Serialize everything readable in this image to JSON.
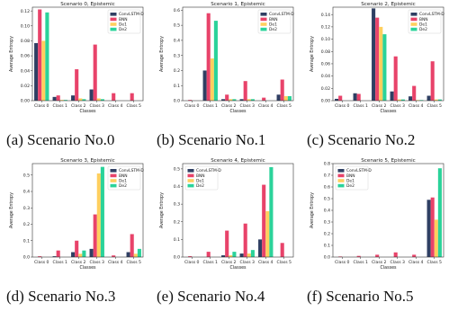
{
  "colors": {
    "ConvLSTM-D": "#2f3f63",
    "BNN": "#e8436a",
    "De1": "#ffcf5e",
    "De2": "#2bd39a"
  },
  "captions": [
    "(a) Scenario No.0",
    "(b) Scenario No.1",
    "(c) Scenario No.2",
    "(d) Scenario No.3",
    "(e) Scenario No.4",
    "(f) Scenario No.5"
  ],
  "chart_data": [
    {
      "type": "bar",
      "title": "Scenario 0, Epistemic",
      "xlabel": "Classes",
      "ylabel": "Average Entropy",
      "categories": [
        "Class 0",
        "Class 1",
        "Class 2",
        "Class 3",
        "Class 4",
        "Class 5"
      ],
      "ylim": [
        0,
        0.125
      ],
      "yticks": [
        0.0,
        0.02,
        0.04,
        0.06,
        0.08,
        0.1,
        0.12
      ],
      "yticklabels": [
        "0.00",
        "0.02",
        "0.04",
        "0.06",
        "0.08",
        "0.10",
        "0.12"
      ],
      "legend": "top-right",
      "series": [
        {
          "name": "ConvLSTM-D",
          "values": [
            0.077,
            0.005,
            0.007,
            0.015,
            0.0,
            0.0
          ]
        },
        {
          "name": "BNN",
          "values": [
            0.122,
            0.007,
            0.042,
            0.075,
            0.01,
            0.01
          ]
        },
        {
          "name": "De1",
          "values": [
            0.08,
            0.001,
            0.003,
            0.003,
            0.0,
            0.0
          ]
        },
        {
          "name": "De2",
          "values": [
            0.118,
            0.001,
            0.002,
            0.002,
            0.0,
            0.0
          ]
        }
      ]
    },
    {
      "type": "bar",
      "title": "Scenario 1, Epistemic",
      "xlabel": "Classes",
      "ylabel": "Average Entropy",
      "categories": [
        "Class 0",
        "Class 1",
        "Class 2",
        "Class 3",
        "Class 4",
        "Class 5"
      ],
      "ylim": [
        0,
        0.62
      ],
      "yticks": [
        0.0,
        0.1,
        0.2,
        0.3,
        0.4,
        0.5,
        0.6
      ],
      "yticklabels": [
        "0.0",
        "0.1",
        "0.2",
        "0.3",
        "0.4",
        "0.5",
        "0.6"
      ],
      "legend": "top-right",
      "series": [
        {
          "name": "ConvLSTM-D",
          "values": [
            0.0,
            0.2,
            0.01,
            0.01,
            0.0,
            0.04
          ]
        },
        {
          "name": "BNN",
          "values": [
            0.005,
            0.58,
            0.04,
            0.13,
            0.02,
            0.14
          ]
        },
        {
          "name": "De1",
          "values": [
            0.0,
            0.28,
            0.01,
            0.01,
            0.0,
            0.03
          ]
        },
        {
          "name": "De2",
          "values": [
            0.0,
            0.53,
            0.01,
            0.01,
            0.0,
            0.03
          ]
        }
      ]
    },
    {
      "type": "bar",
      "title": "Scenario 2, Epistemic",
      "xlabel": "Classes",
      "ylabel": "Average Entropy",
      "categories": [
        "Class 0",
        "Class 1",
        "Class 2",
        "Class 3",
        "Class 4",
        "Class 5"
      ],
      "ylim": [
        0,
        0.152
      ],
      "yticks": [
        0.0,
        0.02,
        0.04,
        0.06,
        0.08,
        0.1,
        0.12,
        0.14
      ],
      "yticklabels": [
        "0.00",
        "0.02",
        "0.04",
        "0.06",
        "0.08",
        "0.10",
        "0.12",
        "0.14"
      ],
      "legend": "top-right",
      "series": [
        {
          "name": "ConvLSTM-D",
          "values": [
            0.003,
            0.012,
            0.15,
            0.015,
            0.007,
            0.008
          ]
        },
        {
          "name": "BNN",
          "values": [
            0.008,
            0.011,
            0.135,
            0.072,
            0.024,
            0.064
          ]
        },
        {
          "name": "De1",
          "values": [
            0.0,
            0.0,
            0.12,
            0.002,
            0.001,
            0.002
          ]
        },
        {
          "name": "De2",
          "values": [
            0.0,
            0.0,
            0.108,
            0.002,
            0.001,
            0.002
          ]
        }
      ]
    },
    {
      "type": "bar",
      "title": "Scenario 3, Epistemic",
      "xlabel": "Classes",
      "ylabel": "Average Entropy",
      "categories": [
        "Class 0",
        "Class 1",
        "Class 2",
        "Class 3",
        "Class 4",
        "Class 5"
      ],
      "ylim": [
        0,
        0.57
      ],
      "yticks": [
        0.0,
        0.1,
        0.2,
        0.3,
        0.4,
        0.5
      ],
      "yticklabels": [
        "0.0",
        "0.1",
        "0.2",
        "0.3",
        "0.4",
        "0.5"
      ],
      "legend": "top-right",
      "series": [
        {
          "name": "ConvLSTM-D",
          "values": [
            0.0,
            0.005,
            0.03,
            0.05,
            0.0,
            0.03
          ]
        },
        {
          "name": "BNN",
          "values": [
            0.005,
            0.04,
            0.1,
            0.26,
            0.01,
            0.14
          ]
        },
        {
          "name": "De1",
          "values": [
            0.0,
            0.0,
            0.02,
            0.51,
            0.0,
            0.02
          ]
        },
        {
          "name": "De2",
          "values": [
            0.0,
            0.0,
            0.04,
            0.55,
            0.0,
            0.05
          ]
        }
      ]
    },
    {
      "type": "bar",
      "title": "Scenario 4, Epistemic",
      "xlabel": "Classes",
      "ylabel": "Average Entropy",
      "categories": [
        "Class 0",
        "Class 1",
        "Class 2",
        "Class 3",
        "Class 4",
        "Class 5"
      ],
      "ylim": [
        0,
        0.53
      ],
      "yticks": [
        0.0,
        0.1,
        0.2,
        0.3,
        0.4,
        0.5
      ],
      "yticklabels": [
        "0.0",
        "0.1",
        "0.2",
        "0.3",
        "0.4",
        "0.5"
      ],
      "legend": "top-left",
      "series": [
        {
          "name": "ConvLSTM-D",
          "values": [
            0.0,
            0.0,
            0.01,
            0.02,
            0.1,
            0.0
          ]
        },
        {
          "name": "BNN",
          "values": [
            0.005,
            0.03,
            0.15,
            0.19,
            0.41,
            0.08
          ]
        },
        {
          "name": "De1",
          "values": [
            0.0,
            0.0,
            0.01,
            0.02,
            0.26,
            0.0
          ]
        },
        {
          "name": "De2",
          "values": [
            0.0,
            0.0,
            0.03,
            0.04,
            0.51,
            0.0
          ]
        }
      ]
    },
    {
      "type": "bar",
      "title": "Scenario 5, Epistemic",
      "xlabel": "Classes",
      "ylabel": "Average Entropy",
      "categories": [
        "Class 0",
        "Class 1",
        "Class 2",
        "Class 3",
        "Class 4",
        "Class 5"
      ],
      "ylim": [
        0,
        0.8
      ],
      "yticks": [
        0.0,
        0.1,
        0.2,
        0.3,
        0.4,
        0.5,
        0.6,
        0.7,
        0.8
      ],
      "yticklabels": [
        "0.0",
        "0.1",
        "0.2",
        "0.3",
        "0.4",
        "0.5",
        "0.6",
        "0.7",
        "0.8"
      ],
      "legend": "top-left",
      "series": [
        {
          "name": "ConvLSTM-D",
          "values": [
            0.0,
            0.0,
            0.0,
            0.0,
            0.0,
            0.49
          ]
        },
        {
          "name": "BNN",
          "values": [
            0.005,
            0.01,
            0.02,
            0.04,
            0.02,
            0.51
          ]
        },
        {
          "name": "De1",
          "values": [
            0.0,
            0.0,
            0.0,
            0.0,
            0.0,
            0.32
          ]
        },
        {
          "name": "De2",
          "values": [
            0.0,
            0.0,
            0.0,
            0.0,
            0.0,
            0.76
          ]
        }
      ]
    }
  ]
}
